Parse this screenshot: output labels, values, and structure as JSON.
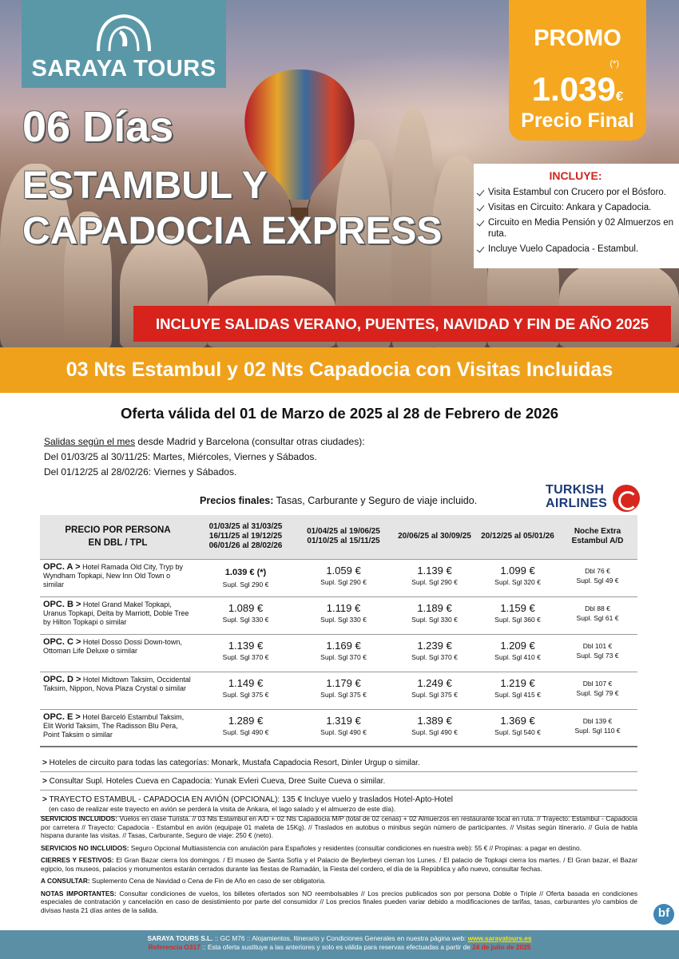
{
  "brand": "SARAYA TOURS",
  "promo": {
    "label": "PROMO",
    "note": "(*)",
    "price": "1.039",
    "currency": "€",
    "sub": "Precio Final"
  },
  "hero": {
    "days": "06 Días",
    "title_line_1": "ESTAMBUL Y",
    "title_line_2": "CAPADOCIA EXPRESS"
  },
  "includes": {
    "title": "INCLUYE:",
    "items": [
      "Visita Estambul con Crucero por el Bósforo.",
      "Visitas en Circuito: Ankara y Capadocia.",
      "Circuito en Media Pensión y 02 Almuerzos en ruta.",
      "Incluye Vuelo Capadocia - Estambul."
    ]
  },
  "banner_red": "INCLUYE SALIDAS VERANO, PUENTES, NAVIDAD Y FIN DE AÑO 2025",
  "banner_orange": "03 Nts Estambul y 02 Nts Capadocia con Visitas Incluidas",
  "offer": "Oferta válida del 01 de Marzo de 2025 al 28 de Febrero de 2026",
  "departures": {
    "lead_underlined": "Salidas según el mes",
    "lead_rest": " desde Madrid y Barcelona (consultar otras ciudades):",
    "lines": [
      "Del 01/03/25 al 30/11/25: Martes, Miércoles, Viernes y Sábados.",
      "Del 01/12/25 al 28/02/26: Viernes y Sábados."
    ]
  },
  "prices_note": {
    "bold": "Precios finales:",
    "rest": " Tasas, Carburante y Seguro de viaje incluido."
  },
  "airline": {
    "line_1": "TURKISH",
    "line_2": "AIRLINES"
  },
  "table": {
    "headers": [
      [
        "PRECIO POR PERSONA",
        "EN DBL / TPL"
      ],
      [
        "01/03/25 al 31/03/25",
        "16/11/25 al 19/12/25",
        "06/01/26 al 28/02/26"
      ],
      [
        "01/04/25 al 19/06/25",
        "01/10/25 al 15/11/25"
      ],
      [
        "20/06/25 al 30/09/25"
      ],
      [
        "20/12/25 al 05/01/26"
      ],
      [
        "Noche Extra",
        "Estambul A/D"
      ]
    ],
    "rows": [
      {
        "option": "OPC. A >",
        "hotels": "Hotel Ramada Old City, Tryp by Wyndham Topkapi, New Inn Old Town o similar",
        "prices": [
          {
            "price": "1.039",
            "suffix": "€ (*)",
            "supl": "Supl. Sgl 290 €"
          },
          {
            "price": "1.059 €",
            "supl": "Supl. Sgl 290 €"
          },
          {
            "price": "1.139 €",
            "supl": "Supl. Sgl 290 €"
          },
          {
            "price": "1.099 €",
            "supl": "Supl. Sgl 320 €"
          }
        ],
        "extra": {
          "dbl": "Dbl 76 €",
          "sgl": "Supl. Sgl 49 €"
        }
      },
      {
        "option": "OPC. B >",
        "hotels": "Hotel Grand Makel Topkapi, Uranus Topkapi, Delta by Marriott, Doble Tree by Hilton Topkapi o similar",
        "prices": [
          {
            "price": "1.089 €",
            "supl": "Supl. Sgl 330 €"
          },
          {
            "price": "1.119 €",
            "supl": "Supl. Sgl 330 €"
          },
          {
            "price": "1.189 €",
            "supl": "Supl. Sgl 330 €"
          },
          {
            "price": "1.159 €",
            "supl": "Supl. Sgl 360 €"
          }
        ],
        "extra": {
          "dbl": "Dbl 88 €",
          "sgl": "Supl. Sgl 61 €"
        }
      },
      {
        "option": "OPC. C >",
        "hotels": "Hotel Dosso Dossi Down-town, Ottoman Life Deluxe o similar",
        "prices": [
          {
            "price": "1.139 €",
            "supl": "Supl. Sgl 370 €"
          },
          {
            "price": "1.169 €",
            "supl": "Supl. Sgl 370 €"
          },
          {
            "price": "1.239 €",
            "supl": "Supl. Sgl 370 €"
          },
          {
            "price": "1.209 €",
            "supl": "Supl. Sgl 410 €"
          }
        ],
        "extra": {
          "dbl": "Dbl 101 €",
          "sgl": "Supl. Sgl 73 €"
        }
      },
      {
        "option": "OPC. D >",
        "hotels": "Hotel Midtown Taksim, Occidental Taksim, Nippon, Nova Plaza Crystal o similar",
        "prices": [
          {
            "price": "1.149 €",
            "supl": "Supl. Sgl 375 €"
          },
          {
            "price": "1.179 €",
            "supl": "Supl. Sgl 375 €"
          },
          {
            "price": "1.249 €",
            "supl": "Supl. Sgl 375 €"
          },
          {
            "price": "1.219 €",
            "supl": "Supl. Sgl 415 €"
          }
        ],
        "extra": {
          "dbl": "Dbl 107 €",
          "sgl": "Supl. Sgl 79 €"
        }
      },
      {
        "option": "OPC. E >",
        "hotels": "Hotel Barceló Estambul Taksim, Elit World Taksim, The Radisson Blu Pera, Point Taksim o similar",
        "prices": [
          {
            "price": "1.289 €",
            "supl": "Supl. Sgl 490 €"
          },
          {
            "price": "1.319 €",
            "supl": "Supl. Sgl 490 €"
          },
          {
            "price": "1.389 €",
            "supl": "Supl. Sgl 490 €"
          },
          {
            "price": "1.369 €",
            "supl": "Supl. Sgl 540 €"
          }
        ],
        "extra": {
          "dbl": "Dbl 139 €",
          "sgl": "Supl. Sgl 110 €"
        }
      }
    ]
  },
  "notes": [
    {
      "marker": ">",
      "text": " Hoteles de circuito para todas las categorías: Monark, Mustafa Capadocia Resort, Dinler Urgup o similar."
    },
    {
      "marker": ">",
      "text": " Consultar Supl. Hoteles Cueva en Capadocia: Yunak Evleri Cueva, Dree Suite Cueva o similar."
    },
    {
      "marker": ">",
      "text": " TRAYECTO ESTAMBUL - CAPADOCIA EN AVIÓN (OPCIONAL): 135 € Incluye vuelo y traslados Hotel-Apto-Hotel",
      "sub": "(en caso de realizar este trayecto en avión se perderá la visita de Ankara, el lago salado y el almuerzo de este día)."
    }
  ],
  "conditions": [
    {
      "bold": "SERVICIOS INCLUIDOS:",
      "text": " Vuelos en clase Turista. // 03 Nts Estambul en A/D + 02 Nts Capadocia M/P (total de 02 cenas) + 02 Almuerzos en restaurante local en ruta. // Trayecto: Estambul - Capadocia por carretera // Trayecto: Capadocia - Estambul en avión (equipaje 01 maleta de 15Kg). // Traslados en autobus o minibus según número de participantes. // Visitas según itinerario. // Guía de habla hispana durante las visitas. // Tasas, Carburante, Seguro de viaje: 250 € (neto)."
    },
    {
      "bold": "SERVICIOS NO INCLUIDOS:",
      "text": " Seguro Opcional Multiasistencia con anulación para Españoles y residentes (consultar condiciones en nuestra web): 55 € // Propinas: a pagar en destino."
    },
    {
      "bold": "CIERRES Y FESTIVOS:",
      "text": " El Gran Bazar cierra los domingos. / El museo de Santa Sofía y el Palacio de Beylerbeyi cierran los Lunes. / El palacio de Topkapi cierra los martes. / El Gran bazar, el Bazar egipcio, los museos, palacios y monumentos estarán cerrados durante las fiestas de Ramadán, la Fiesta del cordero, el día de la República y año nuevo, consultar fechas."
    },
    {
      "bold": "A CONSULTAR:",
      "text": " Suplemento Cena de Navidad o Cena de Fin de Año en caso de ser obligatoria."
    },
    {
      "bold": "NOTAS IMPORTANTES:",
      "text": " Consultar condiciones de vuelos, los billetes ofertados son NO reembolsables // Los precios publicados son por persona Doble o Triple // Oferta basada en condiciones especiales de contratación y cancelación en caso de desistimiento por parte del consumidor // Los precios finales pueden variar debido a modificaciones de tarifas, tasas, carburantes y/o cambios de divisas hasta 21 días antes de la salida."
    }
  ],
  "badge": "bf",
  "footer": {
    "line_1": {
      "company": "SARAYA TOURS S.L.",
      "text": " :: GC M76 ::  Alojamientos, Itinerario y Condiciones Generales en nuestra página web: ",
      "link": "www.sarayatours.es"
    },
    "line_2": {
      "reference": "Referencia O317",
      "text": " :: Esta oferta sustituye a las anteriores y solo es válida para reservas efectuadas a partir de ",
      "date": "24 de julio de 2025"
    }
  }
}
